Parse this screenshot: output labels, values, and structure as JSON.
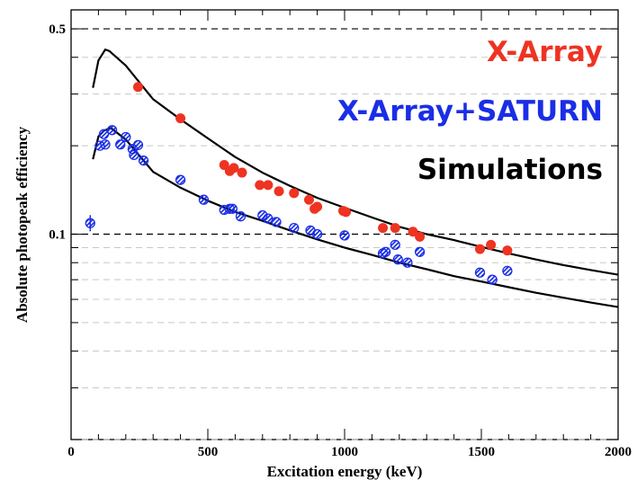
{
  "chart_data": {
    "type": "scatter",
    "title": "",
    "xlabel": "Excitation energy (keV)",
    "ylabel": "Absolute photopeak efficiency",
    "xlim": [
      0,
      2000
    ],
    "ylim": [
      0.02,
      0.58
    ],
    "yscale": "log",
    "xticks": [
      "0",
      "500",
      "1000",
      "1500",
      "2000"
    ],
    "yticks": [
      "0.5",
      "0.1"
    ],
    "grid": "horizontal dashed lines at log-decade subdivisions; bold dashed at 0.1 and 0.5",
    "legend_placement": "top-right text labels",
    "legend": [
      {
        "label": "X-Array",
        "color": "#ee3322"
      },
      {
        "label": "X-Array+SATURN",
        "color": "#1a2ee6"
      },
      {
        "label": "Simulations",
        "color": "#000000"
      }
    ],
    "series": [
      {
        "name": "X-Array",
        "marker": "filled-circle",
        "color": "#ee3322",
        "points": [
          [
            245,
            0.317
          ],
          [
            400,
            0.248
          ],
          [
            560,
            0.172
          ],
          [
            580,
            0.164
          ],
          [
            595,
            0.168
          ],
          [
            625,
            0.162
          ],
          [
            690,
            0.147
          ],
          [
            720,
            0.147
          ],
          [
            760,
            0.14
          ],
          [
            815,
            0.138
          ],
          [
            870,
            0.131
          ],
          [
            890,
            0.122
          ],
          [
            900,
            0.124
          ],
          [
            995,
            0.12
          ],
          [
            1005,
            0.119
          ],
          [
            1140,
            0.105
          ],
          [
            1185,
            0.105
          ],
          [
            1250,
            0.102
          ],
          [
            1275,
            0.098
          ],
          [
            1495,
            0.089
          ],
          [
            1535,
            0.092
          ],
          [
            1595,
            0.088
          ]
        ]
      },
      {
        "name": "X-Array+SATURN",
        "marker": "hatched-circle",
        "color": "#1a2ee6",
        "points": [
          [
            70,
            0.109
          ],
          [
            105,
            0.2
          ],
          [
            120,
            0.219
          ],
          [
            125,
            0.202
          ],
          [
            150,
            0.226
          ],
          [
            180,
            0.202
          ],
          [
            200,
            0.214
          ],
          [
            225,
            0.195
          ],
          [
            230,
            0.186
          ],
          [
            245,
            0.201
          ],
          [
            265,
            0.178
          ],
          [
            400,
            0.153
          ],
          [
            485,
            0.131
          ],
          [
            560,
            0.121
          ],
          [
            580,
            0.122
          ],
          [
            590,
            0.122
          ],
          [
            620,
            0.115
          ],
          [
            700,
            0.116
          ],
          [
            720,
            0.113
          ],
          [
            750,
            0.11
          ],
          [
            815,
            0.105
          ],
          [
            875,
            0.103
          ],
          [
            900,
            0.1
          ],
          [
            1000,
            0.099
          ],
          [
            1140,
            0.086
          ],
          [
            1150,
            0.087
          ],
          [
            1185,
            0.092
          ],
          [
            1195,
            0.082
          ],
          [
            1230,
            0.08
          ],
          [
            1275,
            0.087
          ],
          [
            1495,
            0.074
          ],
          [
            1540,
            0.07
          ],
          [
            1595,
            0.075
          ]
        ]
      },
      {
        "name": "Simulations",
        "line": true,
        "color": "#000000",
        "curves": [
          [
            [
              80,
              0.315
            ],
            [
              100,
              0.39
            ],
            [
              125,
              0.425
            ],
            [
              140,
              0.42
            ],
            [
              200,
              0.375
            ],
            [
              300,
              0.288
            ],
            [
              400,
              0.246
            ],
            [
              500,
              0.212
            ],
            [
              600,
              0.183
            ],
            [
              700,
              0.162
            ],
            [
              800,
              0.146
            ],
            [
              900,
              0.133
            ],
            [
              1000,
              0.123
            ],
            [
              1100,
              0.114
            ],
            [
              1200,
              0.106
            ],
            [
              1300,
              0.1
            ],
            [
              1400,
              0.0955
            ],
            [
              1500,
              0.0905
            ],
            [
              1600,
              0.086
            ],
            [
              1700,
              0.082
            ],
            [
              1800,
              0.0785
            ],
            [
              1900,
              0.0755
            ],
            [
              2000,
              0.0728
            ]
          ],
          [
            [
              80,
              0.18
            ],
            [
              100,
              0.215
            ],
            [
              120,
              0.225
            ],
            [
              145,
              0.23
            ],
            [
              200,
              0.21
            ],
            [
              300,
              0.163
            ],
            [
              400,
              0.144
            ],
            [
              500,
              0.13
            ],
            [
              600,
              0.119
            ],
            [
              700,
              0.111
            ],
            [
              800,
              0.103
            ],
            [
              900,
              0.096
            ],
            [
              1000,
              0.09
            ],
            [
              1100,
              0.085
            ],
            [
              1200,
              0.08
            ],
            [
              1300,
              0.076
            ],
            [
              1400,
              0.072
            ],
            [
              1500,
              0.069
            ],
            [
              1600,
              0.066
            ],
            [
              1700,
              0.0632
            ],
            [
              1800,
              0.0608
            ],
            [
              1900,
              0.0585
            ],
            [
              2000,
              0.0565
            ]
          ]
        ]
      }
    ]
  }
}
